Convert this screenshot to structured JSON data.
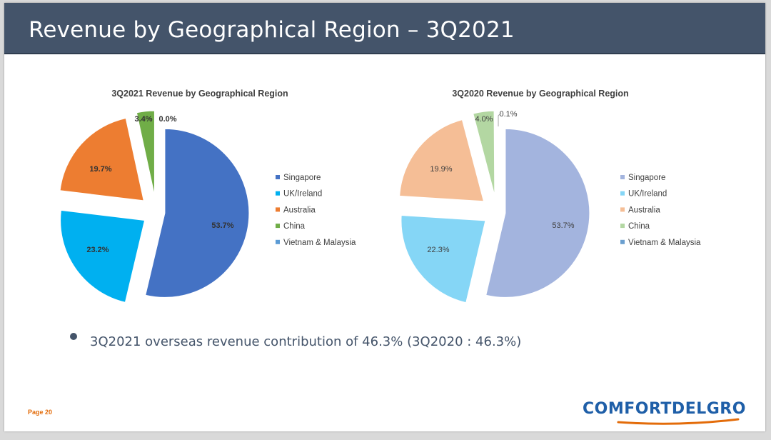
{
  "slide": {
    "title": "Revenue by Geographical Region – 3Q2021",
    "bullet_text": "3Q2021 overseas revenue contribution of 46.3% (3Q2020 : 46.3%)",
    "page_label": "Page 20",
    "logo_text": "COMFORTDELGRO"
  },
  "chart_data": [
    {
      "type": "pie",
      "title": "3Q2021 Revenue by Geographical Region",
      "categories": [
        "Singapore",
        "UK/Ireland",
        "Australia",
        "China",
        "Vietnam & Malaysia"
      ],
      "values": [
        53.7,
        23.2,
        19.7,
        3.4,
        0.0
      ],
      "labels": [
        "53.7%",
        "23.2%",
        "19.7%",
        "3.4%",
        "0.0%"
      ],
      "colors": [
        "#4472c4",
        "#00b0f0",
        "#ed7d31",
        "#70ad47",
        "#5b9bd5"
      ],
      "exploded": true,
      "legend_position": "right"
    },
    {
      "type": "pie",
      "title": "3Q2020 Revenue by Geographical Region",
      "categories": [
        "Singapore",
        "UK/Ireland",
        "Australia",
        "China",
        "Vietnam & Malaysia"
      ],
      "values": [
        53.7,
        22.3,
        19.9,
        4.0,
        0.1
      ],
      "labels": [
        "53.7%",
        "22.3%",
        "19.9%",
        "4.0%",
        "0.1%"
      ],
      "colors": [
        "#a3b4de",
        "#85d6f6",
        "#f5be96",
        "#b3d7a2",
        "#6a9fcf"
      ],
      "exploded": true,
      "legend_position": "right"
    }
  ]
}
